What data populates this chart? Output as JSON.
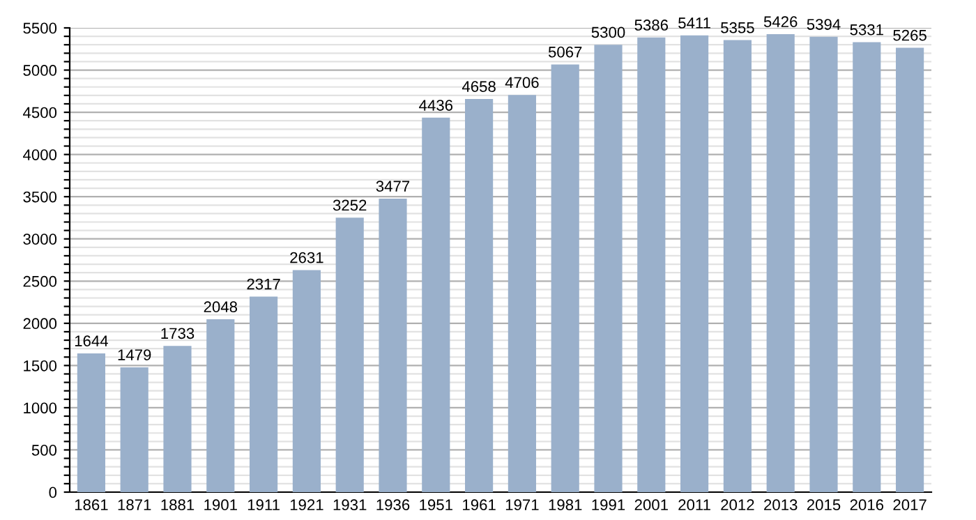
{
  "chart_data": {
    "type": "bar",
    "categories": [
      "1861",
      "1871",
      "1881",
      "1901",
      "1911",
      "1921",
      "1931",
      "1936",
      "1951",
      "1961",
      "1971",
      "1981",
      "1991",
      "2001",
      "2011",
      "2012",
      "2013",
      "2015",
      "2016",
      "2017"
    ],
    "values": [
      1644,
      1479,
      1733,
      2048,
      2317,
      2631,
      3252,
      3477,
      4436,
      4658,
      4706,
      5067,
      5300,
      5386,
      5411,
      5355,
      5426,
      5394,
      5331,
      5265
    ],
    "color": "#9ab0cb",
    "ylim": [
      0,
      5500
    ],
    "yticks": [
      0,
      {
        "value": 100,
        "label": null
      },
      {
        "value": 200,
        "label": null
      },
      {
        "value": 300,
        "label": null
      },
      {
        "value": 400,
        "label": null
      },
      500,
      {
        "value": 600,
        "label": null
      },
      {
        "value": 700,
        "label": null
      },
      {
        "value": 800,
        "label": null
      },
      {
        "value": 900,
        "label": null
      },
      1000,
      {
        "value": 1100,
        "label": null
      },
      {
        "value": 1200,
        "label": null
      },
      {
        "value": 1300,
        "label": null
      },
      {
        "value": 1400,
        "label": null
      },
      1500,
      {
        "value": 1600,
        "label": null
      },
      {
        "value": 1700,
        "label": null
      },
      {
        "value": 1800,
        "label": null
      },
      {
        "value": 1900,
        "label": null
      },
      2000,
      {
        "value": 2100,
        "label": null
      },
      {
        "value": 2200,
        "label": null
      },
      {
        "value": 2300,
        "label": null
      },
      {
        "value": 2400,
        "label": null
      },
      2500,
      {
        "value": 2600,
        "label": null
      },
      {
        "value": 2700,
        "label": null
      },
      {
        "value": 2800,
        "label": null
      },
      {
        "value": 2900,
        "label": null
      },
      3000,
      {
        "value": 3100,
        "label": null
      },
      {
        "value": 3200,
        "label": null
      },
      {
        "value": 3300,
        "label": null
      },
      {
        "value": 3400,
        "label": null
      },
      3500,
      {
        "value": 3600,
        "label": null
      },
      {
        "value": 3700,
        "label": null
      },
      {
        "value": 3800,
        "label": null
      },
      {
        "value": 3900,
        "label": null
      },
      4000,
      {
        "value": 4100,
        "label": null
      },
      {
        "value": 4200,
        "label": null
      },
      {
        "value": 4300,
        "label": null
      },
      {
        "value": 4400,
        "label": null
      },
      4500,
      {
        "value": 4600,
        "label": null
      },
      {
        "value": 4700,
        "label": null
      },
      {
        "value": 4800,
        "label": null
      },
      {
        "value": 4900,
        "label": null
      },
      5000,
      {
        "value": 5100,
        "label": null
      },
      {
        "value": 5200,
        "label": null
      },
      {
        "value": 5300,
        "label": null
      },
      {
        "value": 5400,
        "label": null
      },
      5500
    ],
    "grid": "y",
    "data_labels": true
  }
}
